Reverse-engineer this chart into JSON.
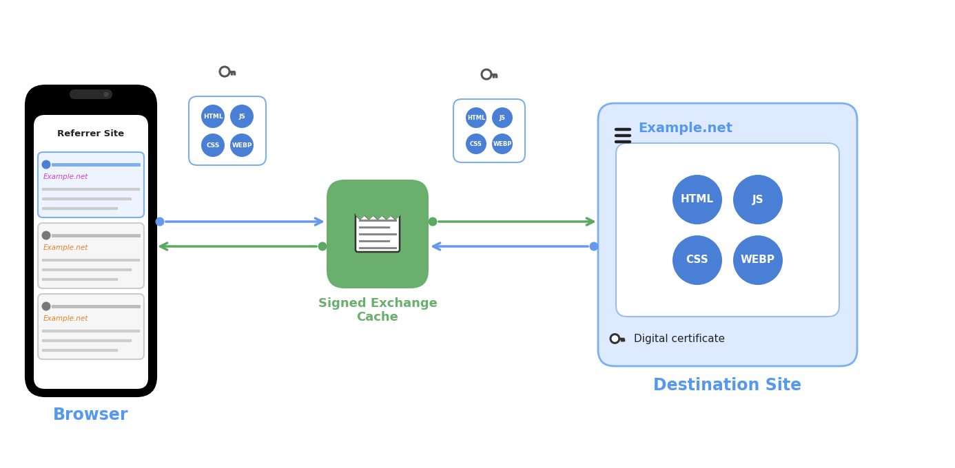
{
  "bg_color": "#ffffff",
  "blue_circle_color": "#4A7FD6",
  "green_box_color": "#6AAF6E",
  "blue_box_bg": "#DDEAFF",
  "blue_box_border": "#7AAFF0",
  "blue_inner_box_bg": "#EAF1FF",
  "blue_inner_box_border": "#9ABCF5",
  "arrow_blue": "#6699EE",
  "arrow_green": "#5BAA62",
  "label_blue": "#5599EE",
  "example_net_orange": "#E8812A",
  "browser_label": "Browser",
  "referrer_label": "Referrer Site",
  "cache_label1": "Signed Exchange",
  "cache_label2": "Cache",
  "dest_label": "Destination Site",
  "example_net": "Example.net",
  "digital_cert": "Digital certificate",
  "tags": [
    "HTML",
    "JS",
    "CSS",
    "WEBP"
  ]
}
